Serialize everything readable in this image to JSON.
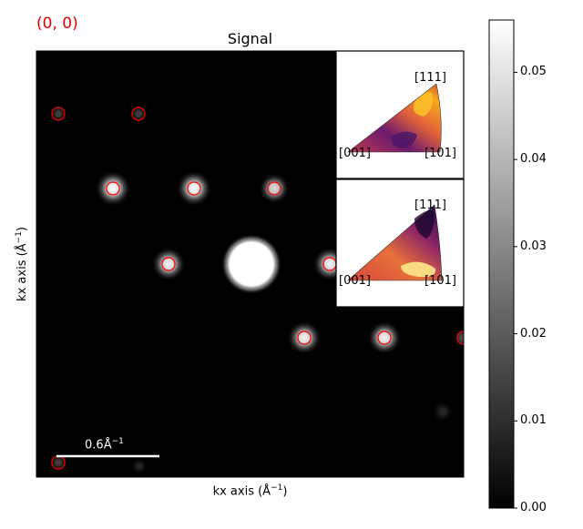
{
  "coordinate_readout": "(0, 0)",
  "title": "Signal",
  "xlabel_text": "kx axis (",
  "ylabel_text": "kx axis (",
  "axis_unit": "Å",
  "axis_unit_power": "−1",
  "axis_close": ")",
  "scalebar": {
    "value": "0.6",
    "unit": "Å",
    "power": "−1"
  },
  "colorbar": {
    "ticks": [
      "0.00",
      "0.01",
      "0.02",
      "0.03",
      "0.04",
      "0.05"
    ],
    "tick_values": [
      0.0,
      0.01,
      0.02,
      0.03,
      0.04,
      0.05
    ],
    "range": [
      0.0,
      0.056
    ],
    "cmap": "gray"
  },
  "insets": [
    {
      "labels": [
        "[111]",
        "[001]",
        "[101]"
      ],
      "cmap": "inferno"
    },
    {
      "labels": [
        "[111]",
        "[001]",
        "[101]"
      ],
      "cmap": "inferno"
    }
  ],
  "colors": {
    "marker": "#ff0000",
    "readout": "#e00000",
    "background": "#000000"
  }
}
